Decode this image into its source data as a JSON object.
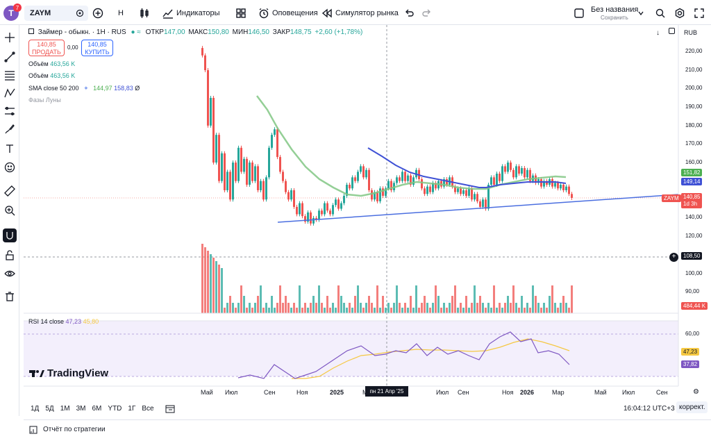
{
  "topbar": {
    "avatar_letter": "T",
    "notifications": "7",
    "symbol": "ZAYM",
    "interval": "H",
    "indicators_label": "Индикаторы",
    "alerts_label": "Оповещения",
    "replay_label": "Симулятор рынка",
    "layout_name": "Без названия",
    "layout_saved": "Сохранить"
  },
  "legend": {
    "title": "Займер - обыкн. · 1H · RUS",
    "open_label": "ОТКР",
    "open": "147,00",
    "high_label": "МАКС",
    "high": "150,80",
    "low_label": "МИН",
    "low": "146,50",
    "close_label": "ЗАКР",
    "close": "148,75",
    "change": "+2,60 (+1,78%)",
    "sell_price": "140,85",
    "sell_label": "ПРОДАТЬ",
    "spread": "0,00",
    "buy_price": "140,85",
    "buy_label": "КУПИТЬ",
    "volume1_label": "Объём",
    "volume1": "463,56 K",
    "volume2_label": "Объём",
    "volume2": "463,56 K",
    "sma_label": "SMA close 50 200",
    "sma50": "144,97",
    "sma200": "158,83",
    "sma_extra": "Ø",
    "moon_label": "Фазы Луны",
    "currency": "RUB"
  },
  "price_axis": {
    "ticks": [
      "220,00",
      "210,00",
      "200,00",
      "190,00",
      "180,00",
      "170,00",
      "160,00",
      "150,00",
      "140,00",
      "130,00",
      "120,00",
      "100,00",
      "90,00"
    ],
    "crosshair": "108,50",
    "sma_tag_green": "151,82",
    "sma_tag_blue": "149,14",
    "price_tag_symbol": "ZAYM",
    "price_tag": "140,85",
    "price_tag_time": "1d 3h",
    "volume_tag": "484,44 K"
  },
  "rsi": {
    "label": "RSI 14 close",
    "value": "47,23",
    "sma": "45,80",
    "axis_60": "60,00",
    "tag_value": "47,23",
    "tag_2": "37,82"
  },
  "time_axis": {
    "labels": [
      "Май",
      "Июл",
      "Сен",
      "Ноя",
      "2025",
      "Мар",
      "Июл",
      "Сен",
      "Ноя",
      "2026",
      "Мар",
      "Май",
      "Июл",
      "Сен"
    ],
    "crosshair": "пн 21 Апр '25"
  },
  "bottombar": {
    "ranges": [
      "1Д",
      "5Д",
      "1М",
      "3М",
      "6М",
      "YTD",
      "1Г",
      "Все"
    ],
    "clock": "16:04:12 UTC+3",
    "adjust": "коррект."
  },
  "footer": {
    "strategy_report": "Отчёт по стратегии"
  },
  "watermark": "TradingView",
  "colors": {
    "up": "#26a69a",
    "down": "#ef5350",
    "sma50": "#81c784",
    "sma200": "#3f51d5",
    "trendline": "#4a6ee0",
    "rsi": "#7e57c2",
    "rsi_ma": "#f5c842"
  }
}
